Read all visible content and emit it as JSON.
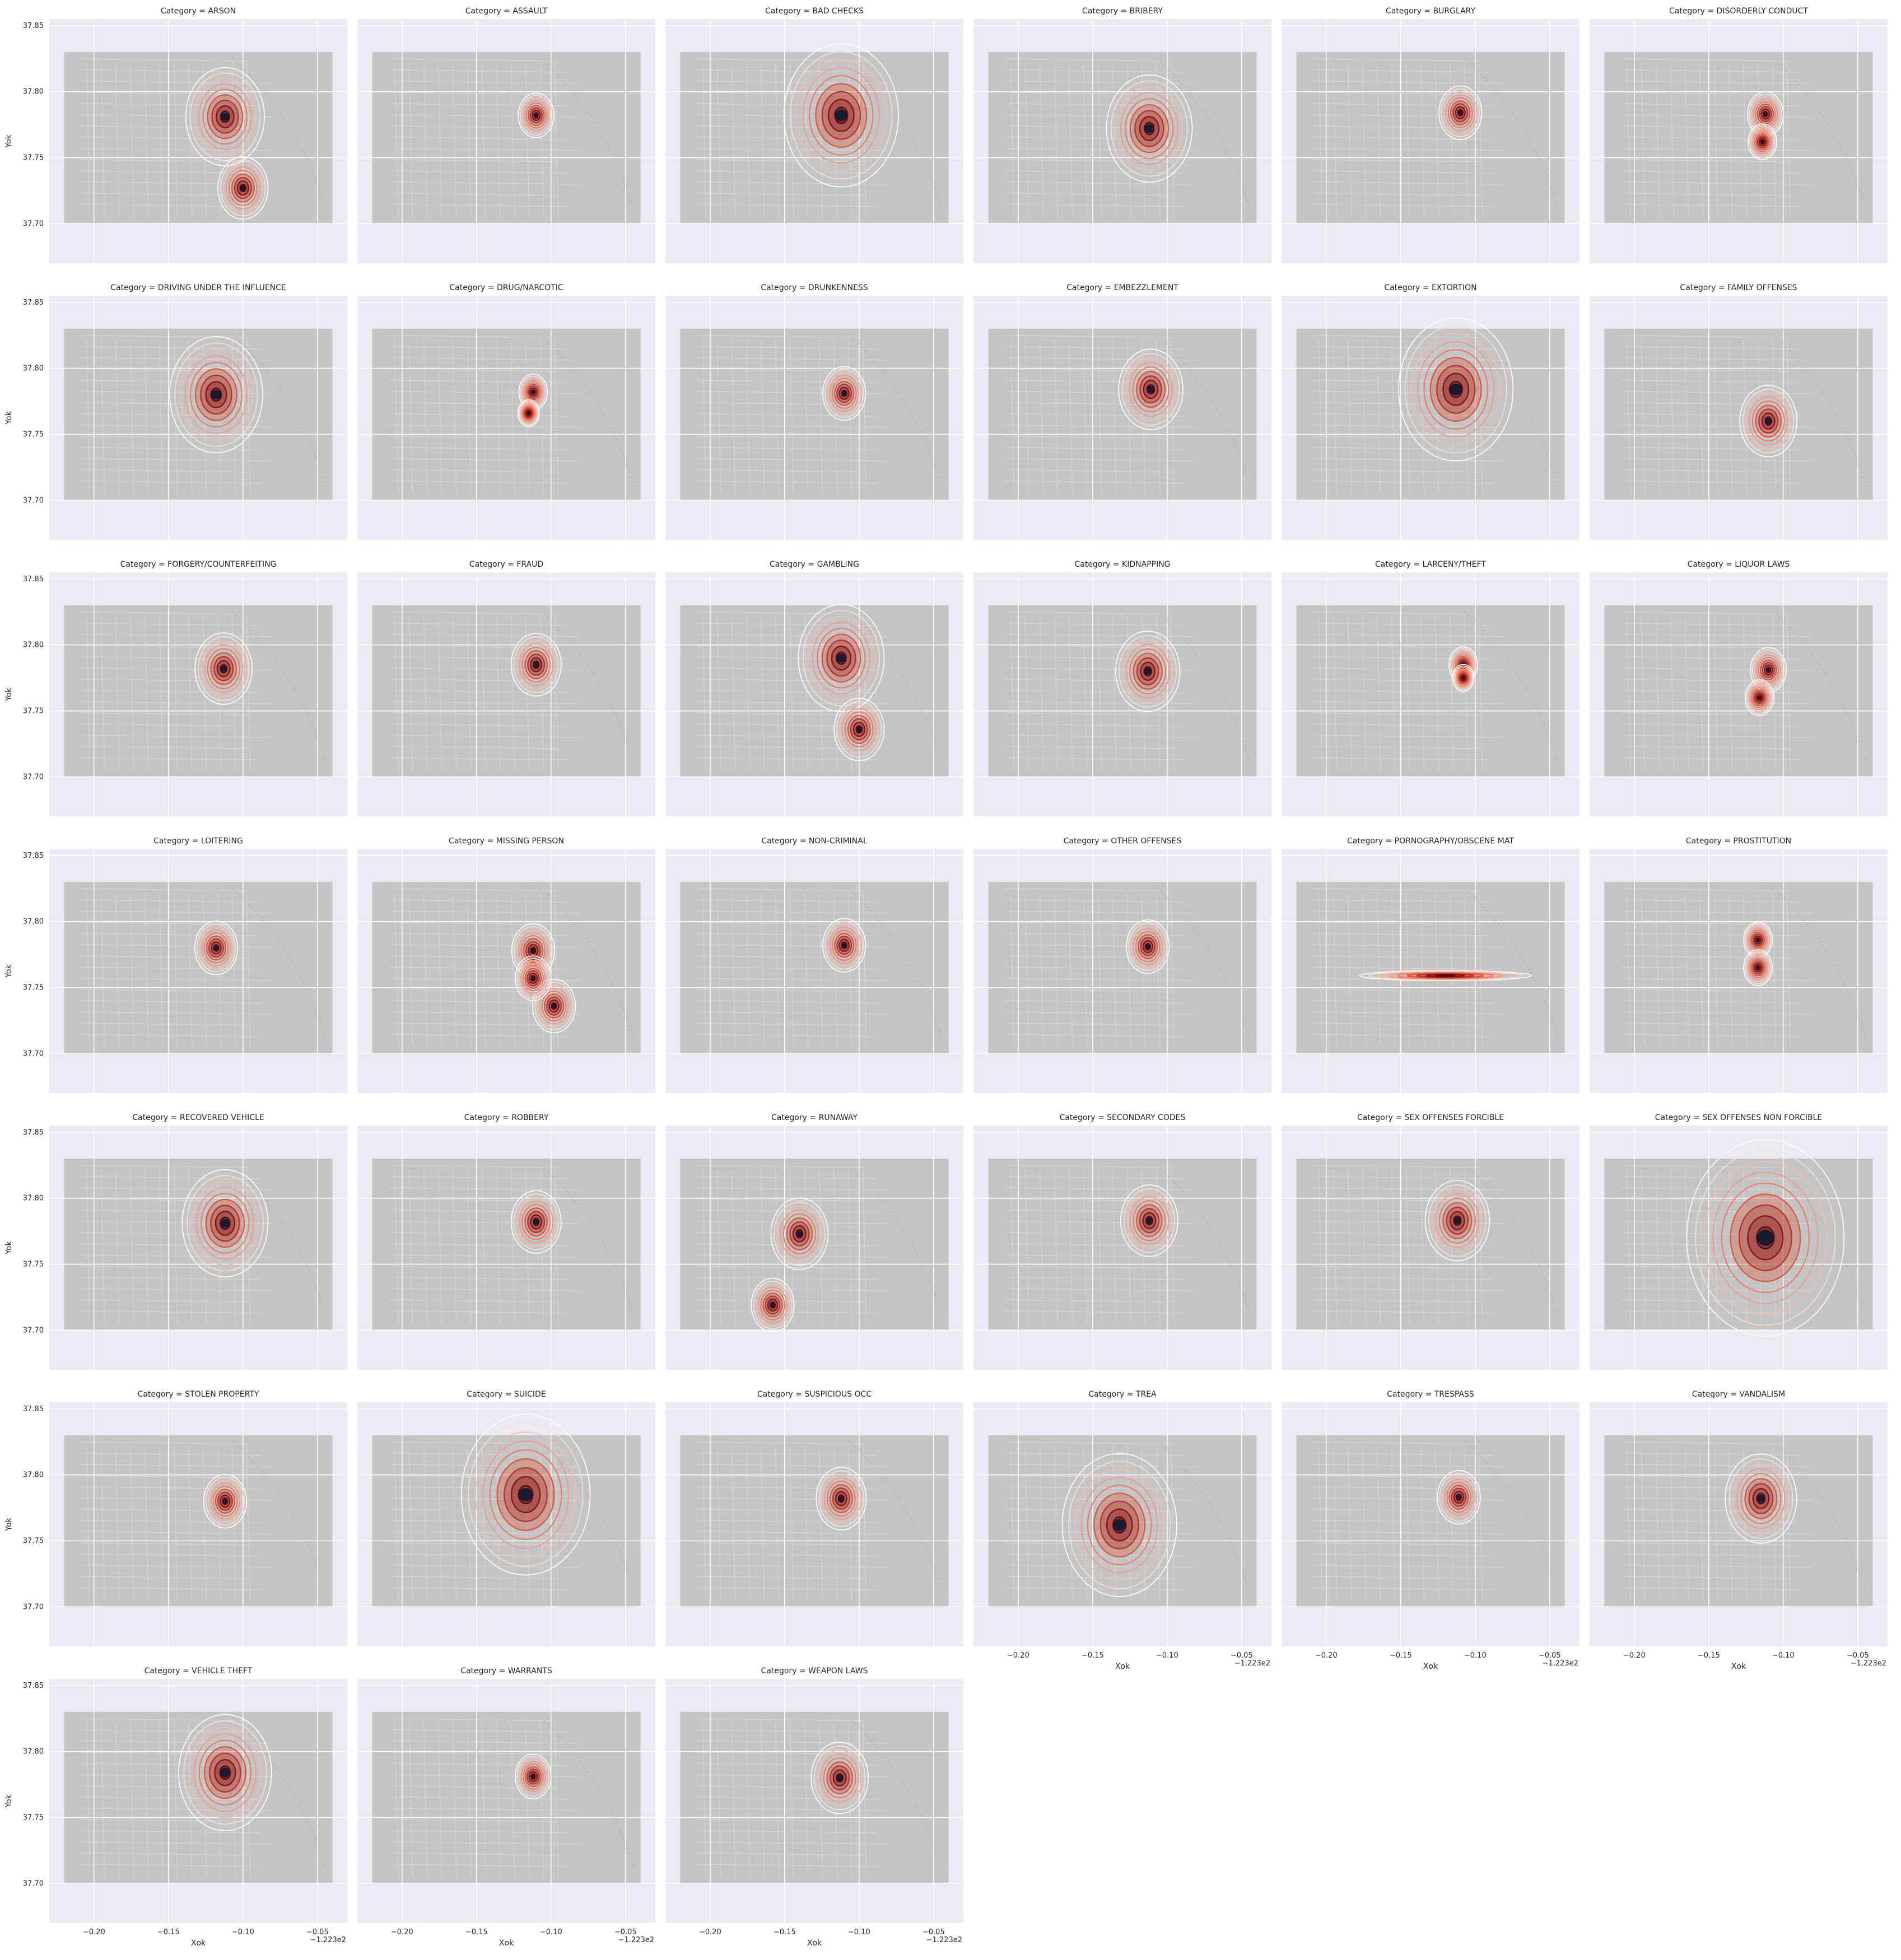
{
  "chart_data": {
    "type": "heatmap",
    "layout": "faceted-kde-contours-over-map",
    "columns": 6,
    "xlabel": "Xok",
    "ylabel": "Yok",
    "x_offset_label": "−1.223e2",
    "xlim": [
      -0.23,
      -0.03
    ],
    "ylim": [
      37.67,
      37.855
    ],
    "x_ticks": [
      -0.2,
      -0.15,
      -0.1,
      -0.05
    ],
    "x_tick_labels": [
      "−0.20",
      "−0.15",
      "−0.10",
      "−0.05"
    ],
    "y_ticks": [
      37.7,
      37.75,
      37.8,
      37.85
    ],
    "y_tick_labels": [
      "37.70",
      "37.75",
      "37.80",
      "37.85"
    ],
    "map_extent": {
      "x": [
        -0.22,
        -0.04
      ],
      "y": [
        37.7,
        37.83
      ]
    },
    "colors": {
      "facet_background": "#eaeaf2",
      "map": "#c4c4c4",
      "gridline": "#ffffff",
      "contour_low": "#fde0dd",
      "contour_mid": "#ef6548",
      "contour_high": "#67000d",
      "contour_peak": "#1a1a2e"
    },
    "facets": [
      {
        "category": "Category = ARSON",
        "hotspots": [
          {
            "x": -0.112,
            "y": 37.781,
            "spread": 0.011
          },
          {
            "x": -0.1,
            "y": 37.727,
            "spread": 0.007
          }
        ]
      },
      {
        "category": "Category = ASSAULT",
        "hotspots": [
          {
            "x": -0.11,
            "y": 37.782,
            "spread": 0.005
          }
        ]
      },
      {
        "category": "Category = BAD CHECKS",
        "hotspots": [
          {
            "x": -0.112,
            "y": 37.782,
            "spread": 0.016
          }
        ]
      },
      {
        "category": "Category = BRIBERY",
        "hotspots": [
          {
            "x": -0.112,
            "y": 37.772,
            "spread": 0.012
          }
        ]
      },
      {
        "category": "Category = BURGLARY",
        "hotspots": [
          {
            "x": -0.11,
            "y": 37.784,
            "spread": 0.006
          }
        ]
      },
      {
        "category": "Category = DISORDERLY CONDUCT",
        "hotspots": [
          {
            "x": -0.112,
            "y": 37.783,
            "spread": 0.005
          },
          {
            "x": -0.114,
            "y": 37.762,
            "spread": 0.004
          }
        ]
      },
      {
        "category": "Category = DRIVING UNDER THE INFLUENCE",
        "hotspots": [
          {
            "x": -0.118,
            "y": 37.78,
            "spread": 0.013
          }
        ]
      },
      {
        "category": "Category = DRUG/NARCOTIC",
        "hotspots": [
          {
            "x": -0.112,
            "y": 37.782,
            "spread": 0.004
          },
          {
            "x": -0.115,
            "y": 37.766,
            "spread": 0.003
          }
        ]
      },
      {
        "category": "Category = DRUNKENNESS",
        "hotspots": [
          {
            "x": -0.11,
            "y": 37.781,
            "spread": 0.006
          }
        ]
      },
      {
        "category": "Category = EMBEZZLEMENT",
        "hotspots": [
          {
            "x": -0.111,
            "y": 37.784,
            "spread": 0.009
          }
        ]
      },
      {
        "category": "Category = EXTORTION",
        "hotspots": [
          {
            "x": -0.113,
            "y": 37.784,
            "spread": 0.016
          }
        ]
      },
      {
        "category": "Category = FAMILY OFFENSES",
        "hotspots": [
          {
            "x": -0.11,
            "y": 37.76,
            "spread": 0.008
          }
        ]
      },
      {
        "category": "Category = FORGERY/COUNTERFEITING",
        "hotspots": [
          {
            "x": -0.113,
            "y": 37.782,
            "spread": 0.008
          }
        ]
      },
      {
        "category": "Category = FRAUD",
        "hotspots": [
          {
            "x": -0.11,
            "y": 37.785,
            "spread": 0.007
          }
        ]
      },
      {
        "category": "Category = GAMBLING",
        "hotspots": [
          {
            "x": -0.112,
            "y": 37.79,
            "spread": 0.012
          },
          {
            "x": -0.1,
            "y": 37.736,
            "spread": 0.007
          }
        ]
      },
      {
        "category": "Category = KIDNAPPING",
        "hotspots": [
          {
            "x": -0.113,
            "y": 37.78,
            "spread": 0.009
          }
        ]
      },
      {
        "category": "Category = LARCENY/THEFT",
        "hotspots": [
          {
            "x": -0.108,
            "y": 37.785,
            "spread": 0.004
          },
          {
            "x": -0.108,
            "y": 37.775,
            "spread": 0.003
          }
        ]
      },
      {
        "category": "Category = LIQUOR LAWS",
        "hotspots": [
          {
            "x": -0.11,
            "y": 37.781,
            "spread": 0.005
          },
          {
            "x": -0.116,
            "y": 37.76,
            "spread": 0.004
          }
        ]
      },
      {
        "category": "Category = LOITERING",
        "hotspots": [
          {
            "x": -0.118,
            "y": 37.78,
            "spread": 0.006
          }
        ]
      },
      {
        "category": "Category = MISSING PERSON",
        "hotspots": [
          {
            "x": -0.112,
            "y": 37.778,
            "spread": 0.006
          },
          {
            "x": -0.098,
            "y": 37.736,
            "spread": 0.006
          },
          {
            "x": -0.112,
            "y": 37.757,
            "spread": 0.005
          }
        ]
      },
      {
        "category": "Category = NON-CRIMINAL",
        "hotspots": [
          {
            "x": -0.11,
            "y": 37.782,
            "spread": 0.006
          }
        ]
      },
      {
        "category": "Category = OTHER OFFENSES",
        "hotspots": [
          {
            "x": -0.113,
            "y": 37.781,
            "spread": 0.006
          }
        ]
      },
      {
        "category": "Category = PORNOGRAPHY/OBSCENE MAT",
        "hotspots": [
          {
            "x": -0.12,
            "y": 37.759,
            "spread": 0.004,
            "stretch": 6
          }
        ]
      },
      {
        "category": "Category = PROSTITUTION",
        "hotspots": [
          {
            "x": -0.117,
            "y": 37.786,
            "spread": 0.004
          },
          {
            "x": -0.117,
            "y": 37.765,
            "spread": 0.004
          }
        ]
      },
      {
        "category": "Category = RECOVERED VEHICLE",
        "hotspots": [
          {
            "x": -0.112,
            "y": 37.781,
            "spread": 0.012
          }
        ]
      },
      {
        "category": "Category = ROBBERY",
        "hotspots": [
          {
            "x": -0.11,
            "y": 37.782,
            "spread": 0.007
          }
        ]
      },
      {
        "category": "Category = RUNAWAY",
        "hotspots": [
          {
            "x": -0.14,
            "y": 37.773,
            "spread": 0.008
          },
          {
            "x": -0.158,
            "y": 37.719,
            "spread": 0.006
          }
        ]
      },
      {
        "category": "Category = SECONDARY CODES",
        "hotspots": [
          {
            "x": -0.112,
            "y": 37.783,
            "spread": 0.008
          }
        ]
      },
      {
        "category": "Category = SEX OFFENSES FORCIBLE",
        "hotspots": [
          {
            "x": -0.112,
            "y": 37.783,
            "spread": 0.009
          }
        ]
      },
      {
        "category": "Category = SEX OFFENSES NON FORCIBLE",
        "hotspots": [
          {
            "x": -0.112,
            "y": 37.77,
            "spread": 0.022
          }
        ]
      },
      {
        "category": "Category = STOLEN PROPERTY",
        "hotspots": [
          {
            "x": -0.112,
            "y": 37.78,
            "spread": 0.006
          }
        ]
      },
      {
        "category": "Category = SUICIDE",
        "hotspots": [
          {
            "x": -0.117,
            "y": 37.785,
            "spread": 0.018
          }
        ]
      },
      {
        "category": "Category = SUSPICIOUS OCC",
        "hotspots": [
          {
            "x": -0.112,
            "y": 37.782,
            "spread": 0.007
          }
        ]
      },
      {
        "category": "Category = TREA",
        "hotspots": [
          {
            "x": -0.132,
            "y": 37.762,
            "spread": 0.016
          }
        ]
      },
      {
        "category": "Category = TRESPASS",
        "hotspots": [
          {
            "x": -0.111,
            "y": 37.783,
            "spread": 0.006
          }
        ]
      },
      {
        "category": "Category = VANDALISM",
        "hotspots": [
          {
            "x": -0.115,
            "y": 37.782,
            "spread": 0.01
          }
        ]
      },
      {
        "category": "Category = VEHICLE THEFT",
        "hotspots": [
          {
            "x": -0.112,
            "y": 37.784,
            "spread": 0.013
          }
        ]
      },
      {
        "category": "Category = WARRANTS",
        "hotspots": [
          {
            "x": -0.112,
            "y": 37.781,
            "spread": 0.005
          }
        ]
      },
      {
        "category": "Category = WEAPON LAWS",
        "hotspots": [
          {
            "x": -0.113,
            "y": 37.78,
            "spread": 0.008
          }
        ]
      }
    ]
  }
}
